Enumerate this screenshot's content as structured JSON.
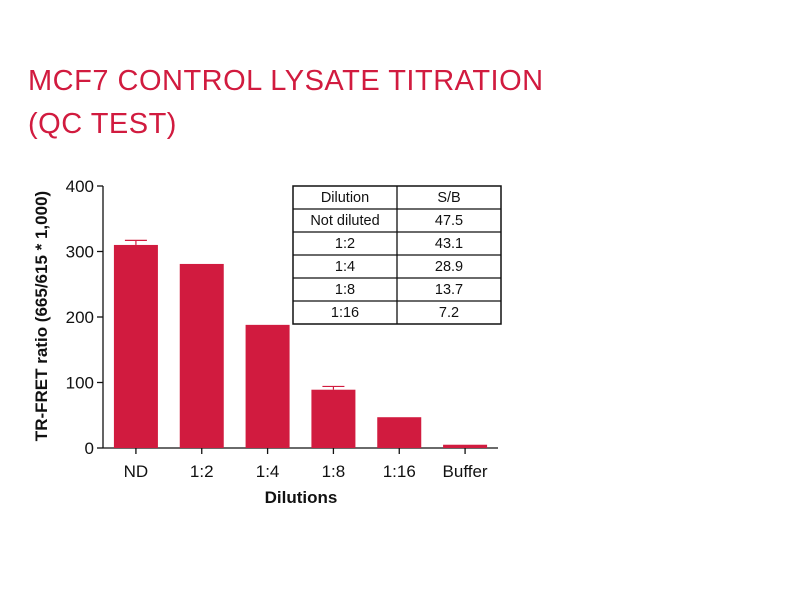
{
  "title_line1": "MCF7 CONTROL LYSATE TITRATION",
  "title_line2": "(QC TEST)",
  "chart_data": {
    "type": "bar",
    "categories": [
      "ND",
      "1:2",
      "1:4",
      "1:8",
      "1:16",
      "Buffer"
    ],
    "values": [
      310,
      281,
      188,
      89,
      47,
      5
    ],
    "error_bars": [
      7,
      0,
      0,
      5,
      0,
      0
    ],
    "xlabel": "Dilutions",
    "ylabel": "TR-FRET ratio (665/615 * 1,000)",
    "ylim": [
      0,
      400
    ],
    "yticks": [
      0,
      100,
      200,
      300,
      400
    ],
    "bar_color": "#d11b3f",
    "grid": false
  },
  "table": {
    "headers": [
      "Dilution",
      "S/B"
    ],
    "rows": [
      [
        "Not diluted",
        "47.5"
      ],
      [
        "1:2",
        "43.1"
      ],
      [
        "1:4",
        "28.9"
      ],
      [
        "1:8",
        "13.7"
      ],
      [
        "1:16",
        "7.2"
      ]
    ]
  }
}
